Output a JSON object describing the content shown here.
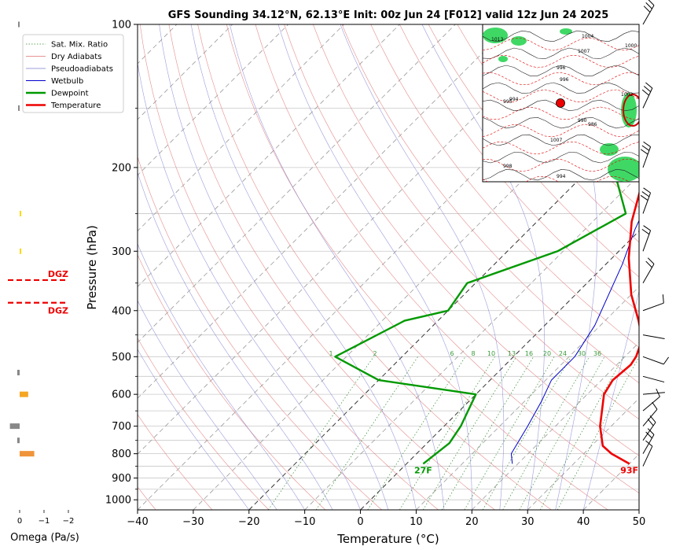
{
  "title": "GFS Sounding 34.12°N, 62.13°E Init: 00z Jun 24 [F012] valid 12z Jun 24 2025",
  "chart_data": {
    "type": "line",
    "title": "GFS Sounding 34.12°N, 62.13°E Init: 00z Jun 24 [F012] valid 12z Jun 24 2025",
    "xlabel": "Temperature (°C)",
    "ylabel": "Pressure (hPa)",
    "xlim": [
      -40,
      50
    ],
    "ylim": [
      1050,
      100
    ],
    "yscale": "log",
    "x_ticks": [
      -40,
      -30,
      -20,
      -10,
      0,
      10,
      20,
      30,
      40,
      50
    ],
    "y_ticks": [
      100,
      200,
      300,
      400,
      500,
      600,
      700,
      800,
      900,
      1000
    ],
    "grid": true,
    "legend_position": "top-left",
    "legend": [
      "Sat. Mix. Ratio",
      "Dry Adiabats",
      "Pseudoadiabats",
      "Wetbulb",
      "Dewpoint",
      "Temperature"
    ],
    "series": [
      {
        "name": "Temperature",
        "color": "#ee0000",
        "points": [
          [
            40,
            840
          ],
          [
            35,
            800
          ],
          [
            32,
            770
          ],
          [
            28,
            700
          ],
          [
            23,
            600
          ],
          [
            22,
            560
          ],
          [
            22.5,
            520
          ],
          [
            22,
            500
          ],
          [
            20,
            460
          ],
          [
            16,
            420
          ],
          [
            10,
            370
          ],
          [
            3,
            310
          ],
          [
            -3,
            260
          ],
          [
            -7.5,
            220
          ],
          [
            -15,
            170
          ],
          [
            -18,
            150
          ],
          [
            -22,
            125
          ],
          [
            -25,
            105
          ],
          [
            -26.5,
            100
          ]
        ]
      },
      {
        "name": "Dewpoint",
        "color": "#009900",
        "points": [
          [
            3,
            840
          ],
          [
            3.5,
            800
          ],
          [
            4,
            760
          ],
          [
            3,
            700
          ],
          [
            0,
            600
          ],
          [
            -20,
            560
          ],
          [
            -32,
            500
          ],
          [
            -26,
            420
          ],
          [
            -20,
            400
          ],
          [
            -21.5,
            350
          ],
          [
            -11,
            300
          ],
          [
            -5.5,
            250
          ],
          [
            -16,
            200
          ],
          [
            -21,
            150
          ],
          [
            -20,
            120
          ],
          [
            -19,
            100
          ]
        ]
      },
      {
        "name": "Wetbulb",
        "color": "#0000cc",
        "points": [
          [
            19,
            840
          ],
          [
            17,
            800
          ],
          [
            15,
            700
          ],
          [
            13,
            620
          ],
          [
            11,
            560
          ],
          [
            11,
            500
          ],
          [
            9,
            430
          ],
          [
            3,
            320
          ],
          [
            -1,
            270
          ],
          [
            -6,
            210
          ],
          [
            -13,
            170
          ],
          [
            -17,
            150
          ],
          [
            -22,
            125
          ],
          [
            -25,
            105
          ],
          [
            -26.5,
            100
          ]
        ]
      }
    ],
    "mix_ratio_labels": [
      "1",
      "2",
      "6",
      "8",
      "10",
      "13",
      "16",
      "20",
      "24",
      "30",
      "36"
    ],
    "annotations": {
      "surface_temp": "93F",
      "surface_dewpoint": "27F",
      "dgz_upper": "DGZ",
      "dgz_lower": "DGZ"
    },
    "omega": {
      "xlabel": "Omega (Pa/s)",
      "ticks": [
        "0",
        "−1",
        "−2"
      ],
      "bars": [
        {
          "pressure": 100,
          "value": 0.05,
          "color": "#888888"
        },
        {
          "pressure": 150,
          "value": 0.05,
          "color": "#888888"
        },
        {
          "pressure": 250,
          "value": -0.05,
          "color": "#ffd700"
        },
        {
          "pressure": 300,
          "value": -0.02,
          "color": "#ffd700"
        },
        {
          "pressure": 540,
          "value": 0.1,
          "color": "#888888"
        },
        {
          "pressure": 600,
          "value": -0.35,
          "color": "#f5a623"
        },
        {
          "pressure": 700,
          "value": 0.4,
          "color": "#888888"
        },
        {
          "pressure": 750,
          "value": 0.1,
          "color": "#888888"
        },
        {
          "pressure": 800,
          "value": -0.6,
          "color": "#f0943b"
        }
      ]
    },
    "dgz_pressures": [
      345,
      385
    ]
  },
  "inset_map": {
    "labels": [
      "1004",
      "1007",
      "1000",
      "996",
      "1002",
      "994",
      "996",
      "1013",
      "990",
      "1007",
      "986",
      "998",
      "994",
      "995"
    ]
  }
}
